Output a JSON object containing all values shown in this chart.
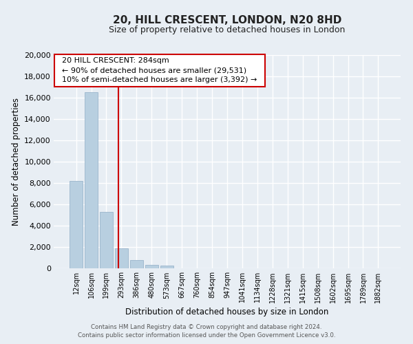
{
  "title": "20, HILL CRESCENT, LONDON, N20 8HD",
  "subtitle": "Size of property relative to detached houses in London",
  "xlabel": "Distribution of detached houses by size in London",
  "ylabel": "Number of detached properties",
  "bar_labels": [
    "12sqm",
    "106sqm",
    "199sqm",
    "293sqm",
    "386sqm",
    "480sqm",
    "573sqm",
    "667sqm",
    "760sqm",
    "854sqm",
    "947sqm",
    "1041sqm",
    "1134sqm",
    "1228sqm",
    "1321sqm",
    "1415sqm",
    "1508sqm",
    "1602sqm",
    "1695sqm",
    "1789sqm",
    "1882sqm"
  ],
  "bar_values": [
    8200,
    16500,
    5300,
    1850,
    800,
    300,
    250,
    0,
    0,
    0,
    0,
    0,
    0,
    0,
    0,
    0,
    0,
    0,
    0,
    0,
    0
  ],
  "bar_color": "#b8cfe0",
  "bar_edge_color": "#9ab5cc",
  "vline_x": 2.78,
  "vline_color": "#cc0000",
  "ylim": [
    0,
    20000
  ],
  "yticks": [
    0,
    2000,
    4000,
    6000,
    8000,
    10000,
    12000,
    14000,
    16000,
    18000,
    20000
  ],
  "annotation_title": "20 HILL CRESCENT: 284sqm",
  "annotation_line1": "← 90% of detached houses are smaller (29,531)",
  "annotation_line2": "10% of semi-detached houses are larger (3,392) →",
  "annotation_box_color": "#ffffff",
  "annotation_box_edge": "#cc0000",
  "footer_line1": "Contains HM Land Registry data © Crown copyright and database right 2024.",
  "footer_line2": "Contains public sector information licensed under the Open Government Licence v3.0.",
  "background_color": "#e8eef4",
  "plot_bg_color": "#e8eef4",
  "grid_color": "#ffffff"
}
